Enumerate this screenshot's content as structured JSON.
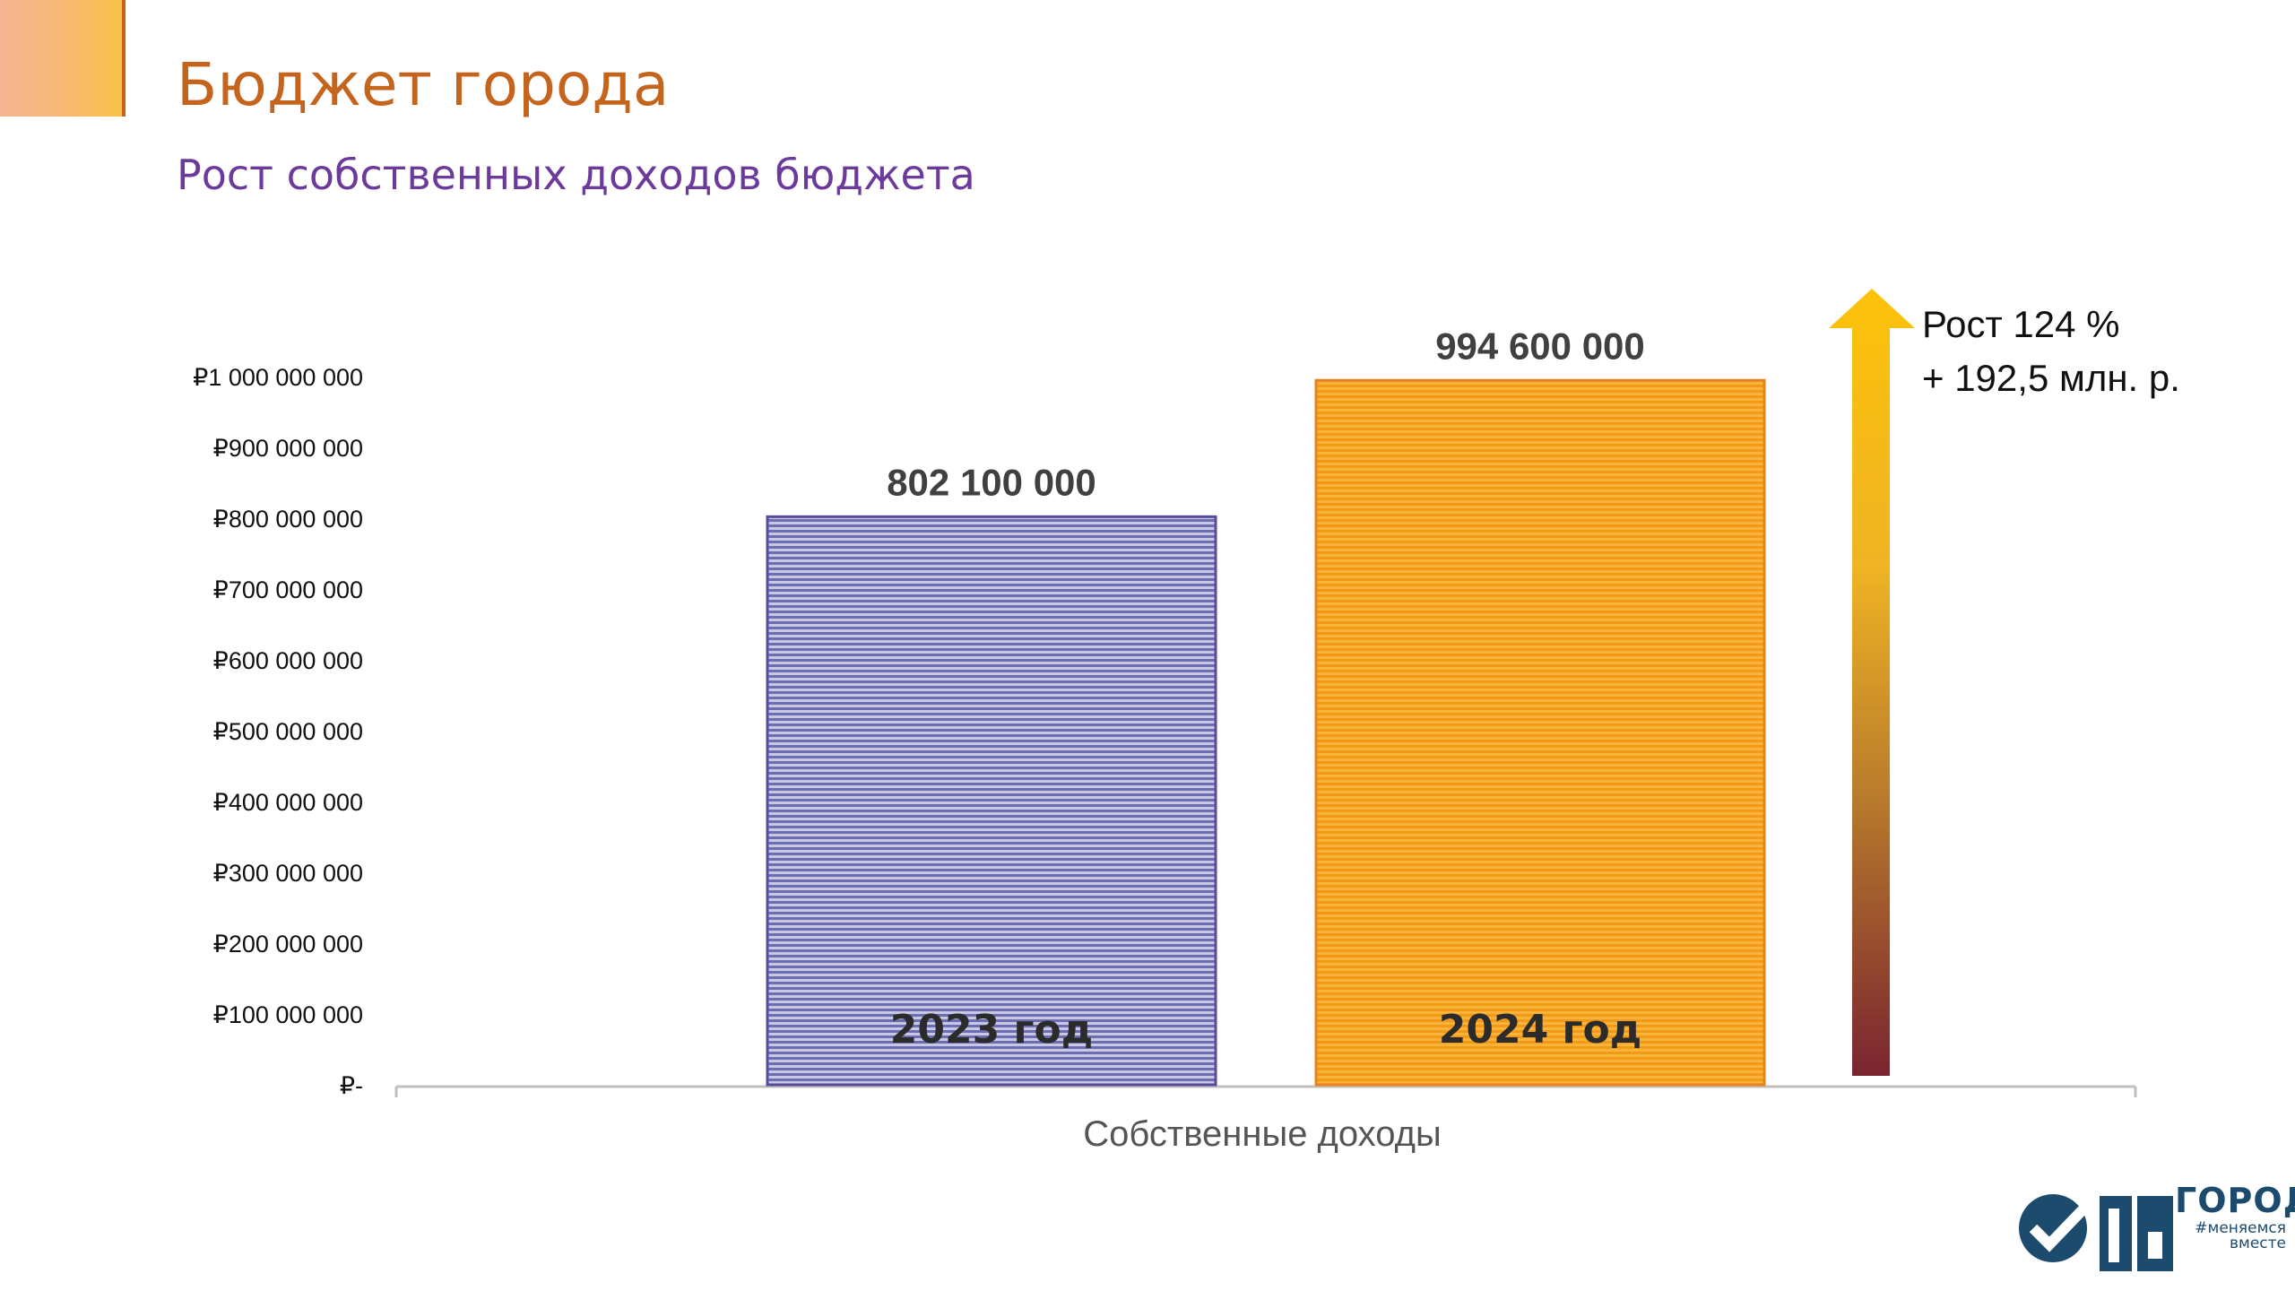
{
  "header": {
    "title": "Бюджет города",
    "subtitle": "Рост собственных доходов бюджета"
  },
  "chart_data": {
    "type": "bar",
    "categories": [
      "Собственные доходы"
    ],
    "xlabel": "Собственные доходы",
    "ylabel": "",
    "ylim": [
      0,
      1000000000
    ],
    "yticks": [
      {
        "value": 0,
        "label": "₽-"
      },
      {
        "value": 100000000,
        "label": "₽100 000 000"
      },
      {
        "value": 200000000,
        "label": "₽200 000 000"
      },
      {
        "value": 300000000,
        "label": "₽300 000 000"
      },
      {
        "value": 400000000,
        "label": "₽400 000 000"
      },
      {
        "value": 500000000,
        "label": "₽500 000 000"
      },
      {
        "value": 600000000,
        "label": "₽600 000 000"
      },
      {
        "value": 700000000,
        "label": "₽700 000 000"
      },
      {
        "value": 800000000,
        "label": "₽800 000 000"
      },
      {
        "value": 900000000,
        "label": "₽900 000 000"
      },
      {
        "value": 1000000000,
        "label": "₽1 000 000 000"
      }
    ],
    "grid": false,
    "series": [
      {
        "name": "2023 год",
        "values": [
          802100000
        ],
        "value_label": "802 100 000",
        "color": "#7474b6"
      },
      {
        "name": "2024 год",
        "values": [
          994600000
        ],
        "value_label": "994 600 000",
        "color": "#f4a21c"
      }
    ],
    "annotation": {
      "line1": "Рост  124 %",
      "line2": "+ 192,5 млн. р."
    }
  },
  "logo": {
    "word": "ГОРОД",
    "tagline": "#меняемся вместе"
  },
  "colors": {
    "title": "#c5651d",
    "subtitle": "#6b3a9a",
    "arrow_top": "#fcc20a",
    "arrow_bottom": "#7a2430"
  }
}
